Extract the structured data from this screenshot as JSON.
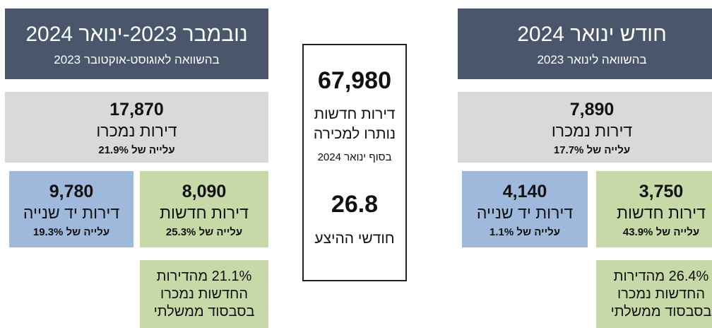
{
  "left": {
    "header": {
      "title": "נובמבר 2023-ינואר 2024",
      "subtitle": "בהשוואה לאוגוסט-אוקטובר 2023"
    },
    "total": {
      "value": "17,870",
      "label": "דירות נמכרו",
      "change": "עלייה של 21.9%"
    },
    "new": {
      "value": "8,090",
      "label": "דירות חדשות",
      "change": "עלייה של 25.3%"
    },
    "second_hand": {
      "value": "9,780",
      "label": "דירות יד שנייה",
      "change": "עלייה של 19.3%"
    },
    "note": [
      "21.1% מהדירות",
      "החדשות נמכרו",
      "בסבסוד ממשלתי"
    ]
  },
  "center": {
    "value": "67,980",
    "label": [
      "דירות חדשות",
      "נותרו למכירה"
    ],
    "sub": "בסוף ינואר 2024",
    "months": "26.8",
    "months_label": "חודשי ההיצע"
  },
  "right": {
    "header": {
      "title": "חודש ינואר 2024",
      "subtitle": "בהשוואה לינואר 2023"
    },
    "total": {
      "value": "7,890",
      "label": "דירות נמכרו",
      "change": "עלייה של 17.7%"
    },
    "new": {
      "value": "3,750",
      "label": "דירות חדשות",
      "change": "עלייה של 43.9%"
    },
    "second_hand": {
      "value": "4,140",
      "label": "דירות יד שנייה",
      "change": "עלייה של 1.1%"
    },
    "note": [
      "26.4% מהדירות",
      "החדשות נמכרו",
      "בסבסוד ממשלתי"
    ]
  }
}
